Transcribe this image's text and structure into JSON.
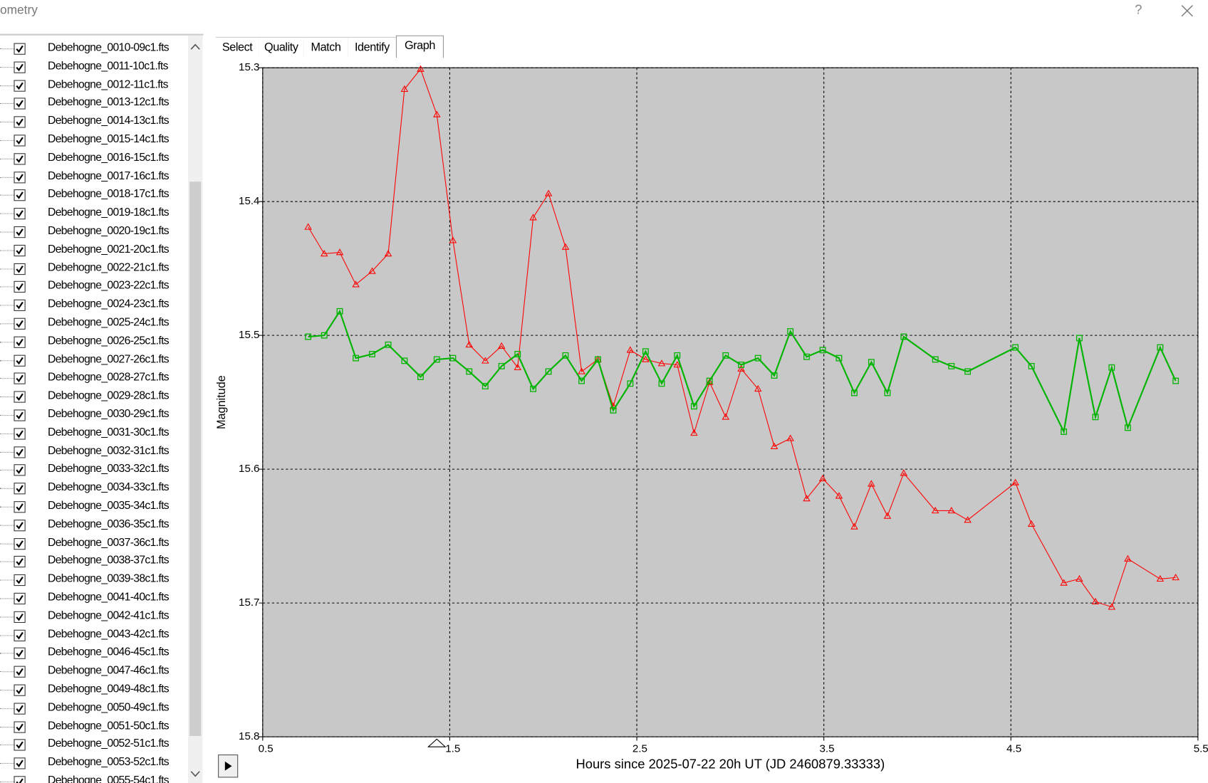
{
  "window": {
    "title": "ometry",
    "help": "?"
  },
  "files": [
    "Debehogne_0010-09c1.fts",
    "Debehogne_0011-10c1.fts",
    "Debehogne_0012-11c1.fts",
    "Debehogne_0013-12c1.fts",
    "Debehogne_0014-13c1.fts",
    "Debehogne_0015-14c1.fts",
    "Debehogne_0016-15c1.fts",
    "Debehogne_0017-16c1.fts",
    "Debehogne_0018-17c1.fts",
    "Debehogne_0019-18c1.fts",
    "Debehogne_0020-19c1.fts",
    "Debehogne_0021-20c1.fts",
    "Debehogne_0022-21c1.fts",
    "Debehogne_0023-22c1.fts",
    "Debehogne_0024-23c1.fts",
    "Debehogne_0025-24c1.fts",
    "Debehogne_0026-25c1.fts",
    "Debehogne_0027-26c1.fts",
    "Debehogne_0028-27c1.fts",
    "Debehogne_0029-28c1.fts",
    "Debehogne_0030-29c1.fts",
    "Debehogne_0031-30c1.fts",
    "Debehogne_0032-31c1.fts",
    "Debehogne_0033-32c1.fts",
    "Debehogne_0034-33c1.fts",
    "Debehogne_0035-34c1.fts",
    "Debehogne_0036-35c1.fts",
    "Debehogne_0037-36c1.fts",
    "Debehogne_0038-37c1.fts",
    "Debehogne_0039-38c1.fts",
    "Debehogne_0041-40c1.fts",
    "Debehogne_0042-41c1.fts",
    "Debehogne_0043-42c1.fts",
    "Debehogne_0046-45c1.fts",
    "Debehogne_0047-46c1.fts",
    "Debehogne_0049-48c1.fts",
    "Debehogne_0050-49c1.fts",
    "Debehogne_0051-50c1.fts",
    "Debehogne_0052-51c1.fts",
    "Debehogne_0053-52c1.fts",
    "Debehogne_0055-54c1.fts"
  ],
  "tabs": [
    "Select",
    "Quality",
    "Match",
    "Identify",
    "Graph"
  ],
  "active_tab": 4,
  "chart_data": {
    "type": "line",
    "x_label": "Hours since 2025-07-22 20h UT (JD 2460879.33333)",
    "y_label": "Magnitude",
    "xlim": [
      0.5,
      5.5
    ],
    "xticks": [
      0.5,
      1.5,
      2.5,
      3.5,
      4.5,
      5.5
    ],
    "ylim": [
      15.3,
      15.8
    ],
    "yticks": [
      15.3,
      15.4,
      15.5,
      15.6,
      15.7,
      15.8
    ],
    "y_inverted": true,
    "grid": true,
    "x": [
      0.743,
      0.829,
      0.912,
      0.998,
      1.085,
      1.171,
      1.258,
      1.344,
      1.431,
      1.517,
      1.604,
      1.69,
      1.777,
      1.863,
      1.946,
      2.028,
      2.119,
      2.205,
      2.292,
      2.374,
      2.465,
      2.547,
      2.633,
      2.716,
      2.806,
      2.889,
      2.975,
      3.058,
      3.148,
      3.235,
      3.321,
      3.408,
      3.494,
      3.581,
      3.663,
      3.754,
      3.84,
      3.927,
      4.096,
      4.182,
      4.269,
      4.524,
      4.61,
      4.783,
      4.866,
      4.952,
      5.039,
      5.125,
      5.298,
      5.381
    ],
    "series": [
      {
        "color": "#ff0000",
        "marker": "triangle",
        "line_width": 1,
        "values": [
          15.419,
          15.439,
          15.438,
          15.462,
          15.452,
          15.439,
          15.316,
          15.301,
          15.335,
          15.429,
          15.507,
          15.519,
          15.508,
          15.524,
          15.412,
          15.394,
          15.434,
          15.527,
          15.518,
          15.553,
          15.511,
          15.518,
          15.521,
          15.522,
          15.573,
          15.535,
          15.561,
          15.525,
          15.54,
          15.583,
          15.577,
          15.622,
          15.607,
          15.62,
          15.643,
          15.611,
          15.635,
          15.603,
          15.631,
          15.631,
          15.638,
          15.61,
          15.641,
          15.685,
          15.682,
          15.699,
          15.703,
          15.667,
          15.682,
          15.681
        ]
      },
      {
        "color": "#00b400",
        "marker": "square",
        "line_width": 2,
        "values": [
          15.501,
          15.5,
          15.482,
          15.517,
          15.514,
          15.507,
          15.519,
          15.531,
          15.518,
          15.517,
          15.527,
          15.538,
          15.523,
          15.514,
          15.54,
          15.527,
          15.515,
          15.534,
          15.518,
          15.556,
          15.536,
          15.512,
          15.536,
          15.515,
          15.553,
          15.534,
          15.515,
          15.522,
          15.517,
          15.53,
          15.497,
          15.516,
          15.511,
          15.517,
          15.543,
          15.52,
          15.543,
          15.501,
          15.518,
          15.523,
          15.527,
          15.509,
          15.523,
          15.572,
          15.502,
          15.561,
          15.524,
          15.569,
          15.509,
          15.534
        ]
      }
    ]
  }
}
